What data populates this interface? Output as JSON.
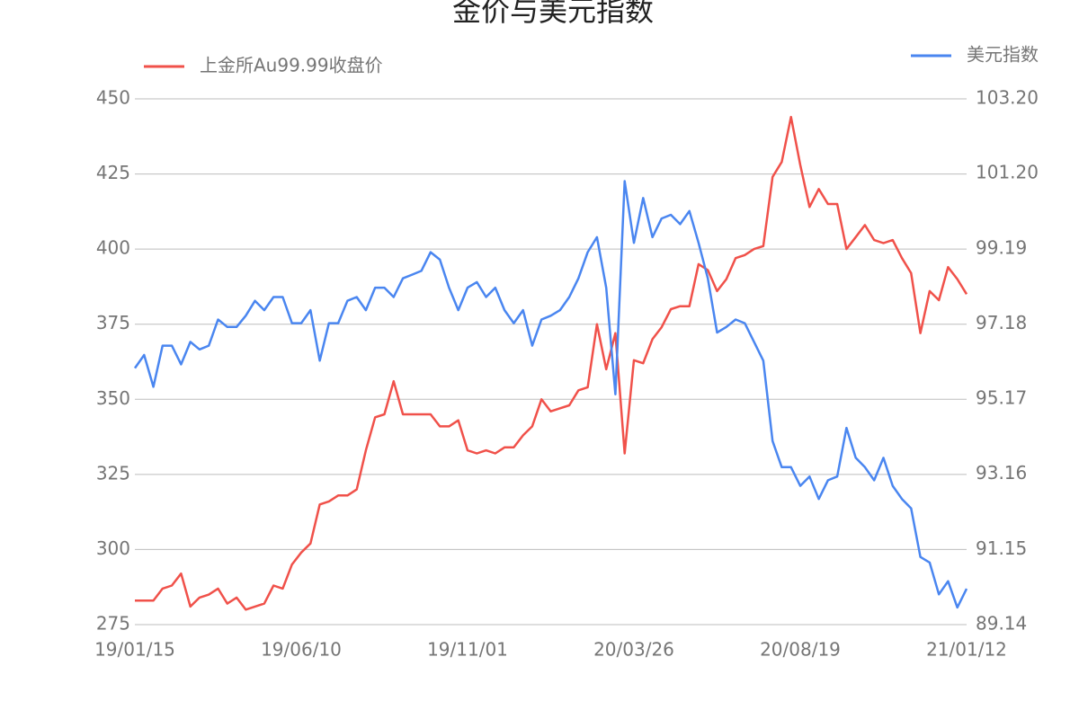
{
  "chart_data": {
    "type": "line",
    "title": "金价与美元指数",
    "categories": [
      "19/01/15",
      null,
      null,
      null,
      null,
      null,
      null,
      null,
      null,
      null,
      null,
      null,
      null,
      null,
      null,
      null,
      null,
      null,
      "19/06/10",
      null,
      null,
      null,
      null,
      null,
      null,
      null,
      null,
      null,
      null,
      null,
      null,
      null,
      null,
      null,
      null,
      null,
      "19/11/01",
      null,
      null,
      null,
      null,
      null,
      null,
      null,
      null,
      null,
      null,
      null,
      null,
      null,
      null,
      null,
      null,
      null,
      "20/03/26",
      null,
      null,
      null,
      null,
      null,
      null,
      null,
      null,
      null,
      null,
      null,
      null,
      null,
      null,
      null,
      null,
      null,
      "20/08/19",
      null,
      null,
      null,
      null,
      null,
      null,
      null,
      null,
      null,
      null,
      null,
      null,
      null,
      null,
      null,
      null,
      null,
      "21/01/12"
    ],
    "series": [
      {
        "name": "上金所Au99.99收盘价",
        "color": "#f0514a",
        "axis": "y",
        "values": [
          283,
          283,
          283,
          287,
          288,
          292,
          281,
          284,
          285,
          287,
          282,
          284,
          280,
          281,
          282,
          288,
          287,
          295,
          299,
          302,
          315,
          316,
          318,
          318,
          320,
          333,
          344,
          345,
          356,
          345,
          345,
          345,
          345,
          341,
          341,
          343,
          333,
          332,
          333,
          332,
          334,
          334,
          338,
          341,
          350,
          346,
          347,
          348,
          353,
          354,
          375,
          360,
          372,
          332,
          363,
          362,
          370,
          374,
          380,
          381,
          381,
          395,
          393,
          386,
          390,
          397,
          398,
          400,
          401,
          424,
          429,
          444,
          428,
          414,
          420,
          415,
          415,
          400,
          404,
          408,
          403,
          402,
          403,
          397,
          392,
          372,
          386,
          383,
          394,
          390,
          385
        ]
      },
      {
        "name": "美元指数",
        "color": "#4a86f0",
        "axis": "y2",
        "values": [
          96.0,
          96.35,
          95.5,
          96.6,
          96.6,
          96.1,
          96.7,
          96.5,
          96.6,
          97.3,
          97.1,
          97.1,
          97.4,
          97.8,
          97.55,
          97.9,
          97.9,
          97.2,
          97.2,
          97.55,
          96.2,
          97.2,
          97.2,
          97.8,
          97.9,
          97.55,
          98.15,
          98.15,
          97.9,
          98.4,
          98.5,
          98.6,
          99.1,
          98.9,
          98.15,
          97.55,
          98.15,
          98.3,
          97.9,
          98.15,
          97.55,
          97.2,
          97.55,
          96.6,
          97.3,
          97.4,
          97.55,
          97.9,
          98.4,
          99.1,
          99.5,
          98.15,
          95.3,
          101.0,
          99.35,
          100.55,
          99.5,
          100.0,
          100.1,
          99.85,
          100.2,
          99.35,
          98.4,
          96.95,
          97.1,
          97.3,
          97.2,
          96.7,
          96.2,
          94.05,
          93.35,
          93.35,
          92.85,
          93.1,
          92.5,
          93.0,
          93.1,
          94.4,
          93.6,
          93.35,
          93.0,
          93.6,
          92.85,
          92.5,
          92.25,
          90.95,
          90.8,
          89.95,
          90.3,
          89.6,
          90.1
        ]
      }
    ],
    "ylim": [
      275,
      450
    ],
    "yticks": [
      275,
      300,
      325,
      350,
      375,
      400,
      425,
      450
    ],
    "y2lim": [
      89.14,
      103.2
    ],
    "y2ticks": [
      89.14,
      91.15,
      93.16,
      95.17,
      97.18,
      99.19,
      {
        "value": 101.2,
        "label": "101.20"
      },
      {
        "value": 103.2,
        "label": "103.20"
      }
    ],
    "grid": true
  }
}
